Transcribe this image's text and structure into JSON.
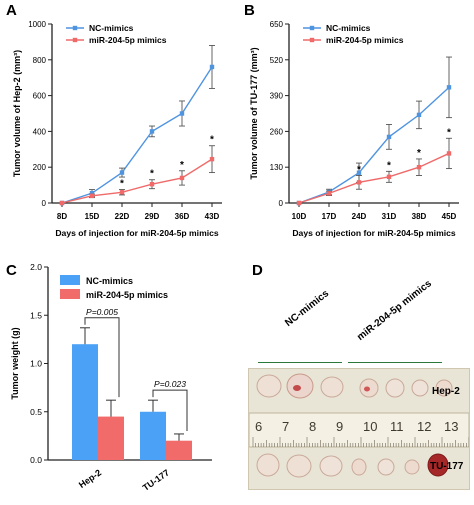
{
  "panels": {
    "a": {
      "letter": "A"
    },
    "b": {
      "letter": "B"
    },
    "c": {
      "letter": "C"
    },
    "d": {
      "letter": "D"
    }
  },
  "colors": {
    "nc": "#4f94e0",
    "mir": "#f06a6a",
    "nc_bar": "#4aa1f5",
    "mir_bar": "#f26b6b"
  },
  "chart_data": [
    {
      "id": "A",
      "type": "line",
      "title": "",
      "xlabel": "Days of injection for miR-204-5p mimics",
      "ylabel": "Tumor volume of Hep-2 (mm³)",
      "categories": [
        "8D",
        "15D",
        "22D",
        "29D",
        "36D",
        "43D"
      ],
      "ylim": [
        0,
        1000
      ],
      "yticks": [
        0,
        200,
        400,
        600,
        800,
        1000
      ],
      "legend_position": "top-left",
      "series": [
        {
          "name": "NC-mimics",
          "values": [
            0,
            55,
            170,
            400,
            500,
            760
          ],
          "errors": [
            0,
            20,
            25,
            30,
            70,
            120
          ]
        },
        {
          "name": "miR-204-5p mimics",
          "values": [
            0,
            40,
            60,
            105,
            140,
            245
          ],
          "errors": [
            0,
            10,
            15,
            25,
            40,
            75
          ]
        }
      ],
      "significance": [
        "",
        "",
        "*",
        "*",
        "*",
        "*"
      ]
    },
    {
      "id": "B",
      "type": "line",
      "title": "",
      "xlabel": "Days of injection for miR-204-5p mimics",
      "ylabel": "Tumor volume of TU-177 (mm³)",
      "categories": [
        "10D",
        "17D",
        "24D",
        "31D",
        "38D",
        "45D"
      ],
      "ylim": [
        0,
        650
      ],
      "yticks": [
        0,
        130,
        260,
        390,
        520,
        650
      ],
      "legend_position": "top-left",
      "series": [
        {
          "name": "NC-mimics",
          "values": [
            0,
            40,
            110,
            240,
            320,
            420
          ],
          "errors": [
            0,
            10,
            35,
            45,
            50,
            110
          ]
        },
        {
          "name": "miR-204-5p mimics",
          "values": [
            0,
            35,
            75,
            95,
            130,
            180
          ],
          "errors": [
            0,
            8,
            25,
            20,
            30,
            55
          ]
        }
      ],
      "significance": [
        "",
        "",
        "*",
        "*",
        "*",
        "*"
      ]
    },
    {
      "id": "C",
      "type": "bar",
      "title": "",
      "xlabel": "",
      "ylabel": "Tumor weight (g)",
      "categories": [
        "Hep-2",
        "TU-177"
      ],
      "ylim": [
        0,
        2.0
      ],
      "yticks": [
        "0.0",
        "0.5",
        "1.0",
        "1.5",
        "2.0"
      ],
      "legend_position": "top-left",
      "series": [
        {
          "name": "NC-mimics",
          "values": [
            1.2,
            0.5
          ],
          "errors": [
            0.17,
            0.12
          ]
        },
        {
          "name": "miR-204-5p mimics",
          "values": [
            0.45,
            0.2
          ],
          "errors": [
            0.17,
            0.07
          ]
        }
      ],
      "pvalues": [
        "P=0.005",
        "P=0.023"
      ]
    }
  ],
  "photo": {
    "group_labels": [
      "NC-mimics",
      "miR-204-5p mimics"
    ],
    "row_labels": [
      "Hep-2",
      "TU-177"
    ],
    "ruler_numbers": [
      "6",
      "7",
      "8",
      "9",
      "10",
      "11",
      "12",
      "13"
    ]
  }
}
